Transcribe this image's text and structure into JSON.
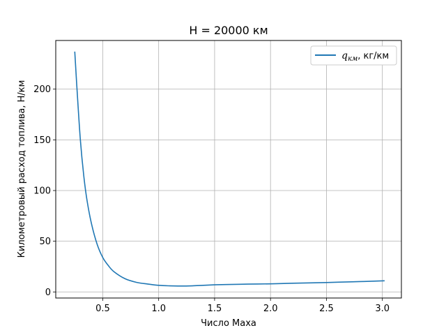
{
  "chart_data": {
    "type": "line",
    "title": "H = 20000 км",
    "xlabel": "Число Маха",
    "ylabel": "Километровый расход топлива, Н/км",
    "xlim": [
      0.08,
      3.17
    ],
    "ylim": [
      -6,
      248
    ],
    "xticks": [
      0.5,
      1.0,
      1.5,
      2.0,
      2.5,
      3.0
    ],
    "xtick_labels": [
      "0.5",
      "1.0",
      "1.5",
      "2.0",
      "2.5",
      "3.0"
    ],
    "yticks": [
      0,
      50,
      100,
      150,
      200
    ],
    "ytick_labels": [
      "0",
      "50",
      "100",
      "150",
      "200"
    ],
    "grid": true,
    "legend_position": "top-right",
    "series": [
      {
        "name_symbol": "q",
        "name_subscript": "км",
        "name_suffix": ",  кг/км",
        "color": "#1f77b4",
        "x": [
          0.25,
          0.27,
          0.3,
          0.33,
          0.36,
          0.4,
          0.45,
          0.5,
          0.55,
          0.6,
          0.7,
          0.8,
          0.9,
          1.0,
          1.1,
          1.2,
          1.3,
          1.4,
          1.5,
          1.6,
          1.8,
          2.0,
          2.2,
          2.5,
          2.8,
          3.02
        ],
        "y": [
          237,
          200,
          150,
          115,
          90,
          67,
          47,
          34,
          26,
          20,
          13,
          9.5,
          7.8,
          6.5,
          6.0,
          5.8,
          6.0,
          6.5,
          7.0,
          7.3,
          7.7,
          8.0,
          8.6,
          9.3,
          10.2,
          11.0
        ]
      }
    ]
  }
}
